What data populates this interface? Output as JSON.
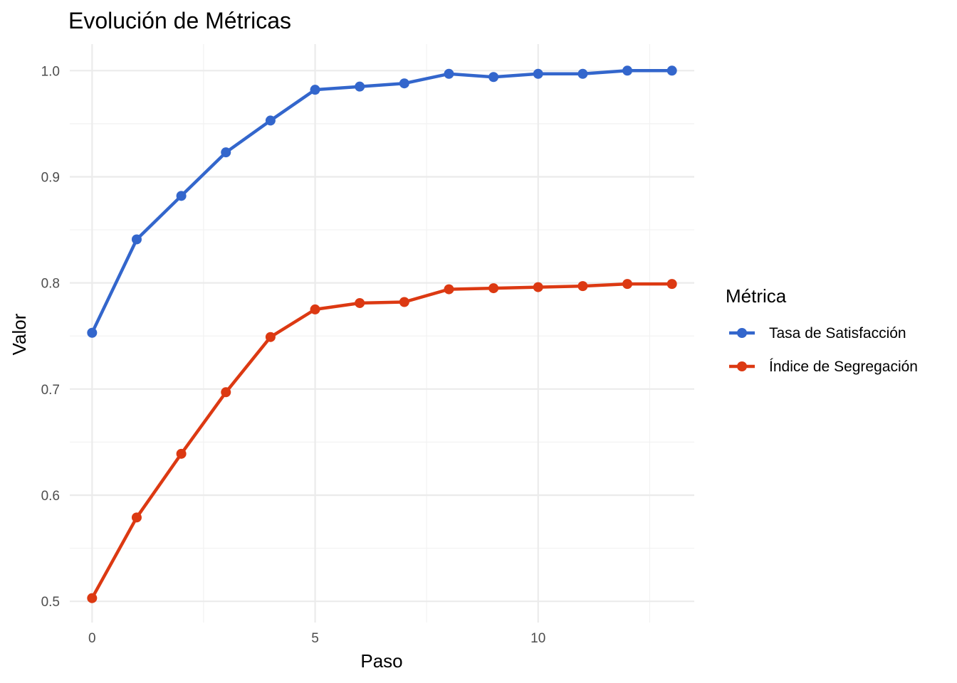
{
  "chart_data": {
    "type": "line",
    "title": "Evolución de Métricas",
    "xlabel": "Paso",
    "ylabel": "Valor",
    "xlim": [
      -0.5,
      13.5
    ],
    "ylim": [
      0.48,
      1.025
    ],
    "x_ticks": [
      0,
      5,
      10
    ],
    "y_ticks": [
      0.5,
      0.6,
      0.7,
      0.8,
      0.9,
      1.0
    ],
    "y_tick_labels": [
      "0.5",
      "0.6",
      "0.7",
      "0.8",
      "0.9",
      "1.0"
    ],
    "grid": true,
    "legend": {
      "title": "Métrica",
      "position": "right"
    },
    "x": [
      0,
      1,
      2,
      3,
      4,
      5,
      6,
      7,
      8,
      9,
      10,
      11,
      12,
      13
    ],
    "series": [
      {
        "name": "Tasa de Satisfacción",
        "color": "#3366cc",
        "values": [
          0.753,
          0.841,
          0.882,
          0.923,
          0.953,
          0.982,
          0.985,
          0.988,
          0.997,
          0.994,
          0.997,
          0.997,
          1.0,
          1.0
        ]
      },
      {
        "name": "Índice de Segregación",
        "color": "#dc3912",
        "values": [
          0.503,
          0.579,
          0.639,
          0.697,
          0.749,
          0.775,
          0.781,
          0.782,
          0.794,
          0.795,
          0.796,
          0.797,
          0.799,
          0.799
        ]
      }
    ]
  }
}
